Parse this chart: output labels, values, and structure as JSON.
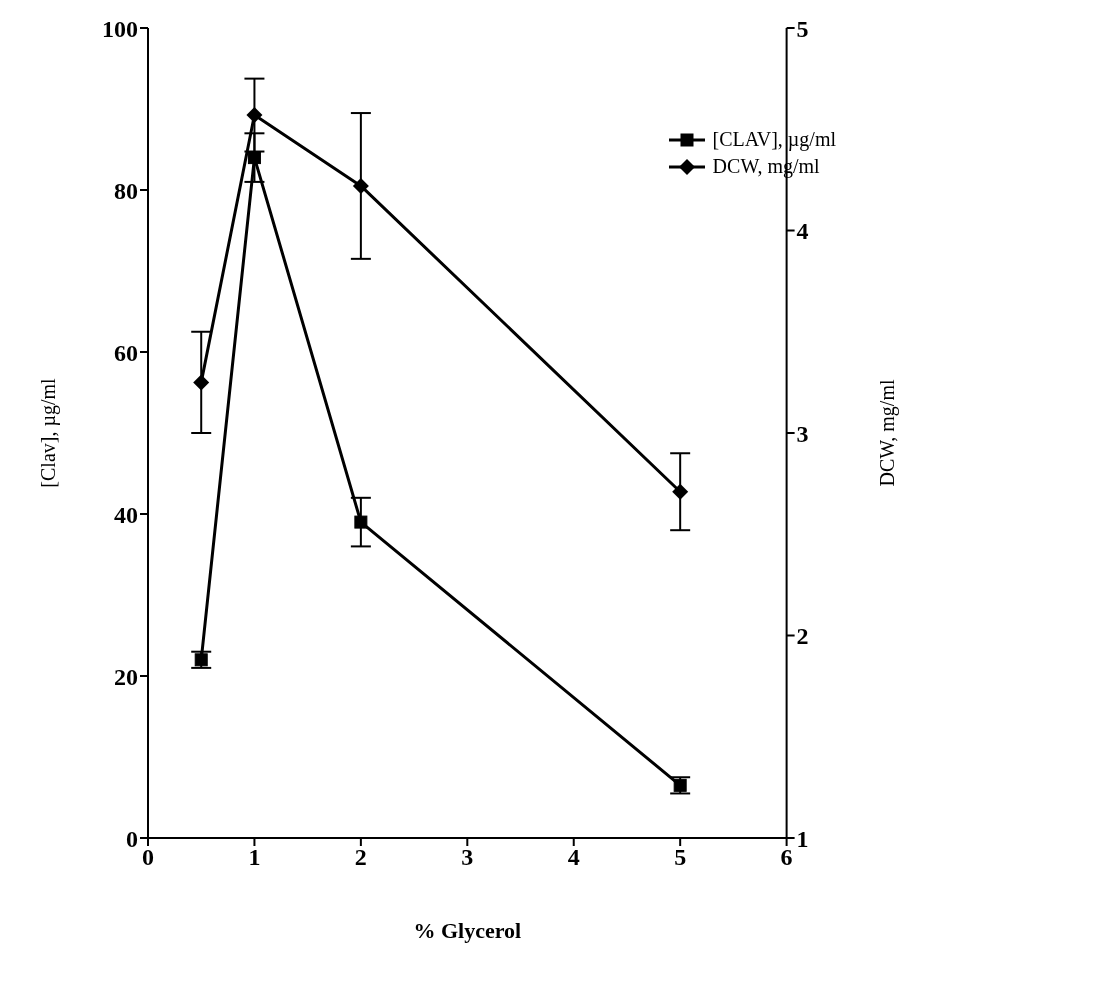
{
  "chart_data": {
    "type": "line",
    "xlabel": "% Glycerol",
    "ylabel": "[Clav], µg/ml",
    "y2label": "DCW, mg/ml",
    "x": [
      0.5,
      1,
      2,
      5
    ],
    "series": [
      {
        "name": "[CLAV], µg/ml",
        "color": "#000000",
        "marker": "square",
        "values": [
          22,
          84,
          39,
          6.5
        ],
        "errors": [
          1,
          3,
          3,
          1
        ]
      },
      {
        "name": "DCW, mg/ml",
        "color": "#000000",
        "marker": "diamond",
        "axis": "y2",
        "values": [
          3.25,
          4.57,
          4.22,
          2.71
        ],
        "errors": [
          0.25,
          0.18,
          0.36,
          0.19
        ]
      }
    ],
    "xlim": [
      0,
      6
    ],
    "xticks": [
      0,
      1,
      2,
      3,
      4,
      5,
      6
    ],
    "ylim": [
      0,
      100
    ],
    "yticks": [
      0,
      20,
      40,
      60,
      80,
      100
    ],
    "y2lim": [
      1,
      5
    ],
    "y2ticks": [
      1,
      2,
      3,
      4,
      5
    ],
    "legend": "top right"
  }
}
